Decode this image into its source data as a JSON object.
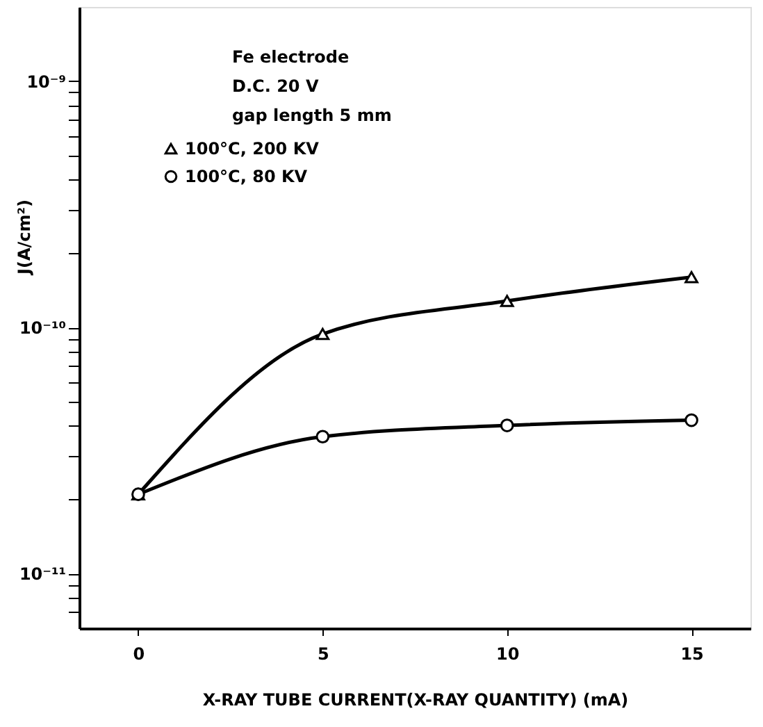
{
  "chart_data": {
    "type": "line",
    "xlabel": "X-RAY TUBE CURRENT(X-RAY QUANTITY)  (mA)",
    "ylabel": "J(A/cm²)",
    "annotations": [
      "Fe electrode",
      "D.C. 20 V",
      "gap length 5 mm"
    ],
    "x": [
      0,
      5,
      10,
      15
    ],
    "series": [
      {
        "name": "100°C, 200 KV",
        "color": "#000000",
        "marker": "triangle",
        "values": [
          2.1e-11,
          9.4e-11,
          1.28e-10,
          1.6e-10
        ]
      },
      {
        "name": "100°C, 80 KV",
        "color": "#000000",
        "marker": "circle",
        "values": [
          2.1e-11,
          3.6e-11,
          4e-11,
          4.2e-11
        ]
      }
    ],
    "log": "y",
    "xlim": [
      -1.6,
      16.6
    ],
    "ylim": [
      6e-12,
      2e-09
    ],
    "xticks": [
      0,
      5,
      10,
      15
    ],
    "yticks": [
      {
        "value": 7e-12,
        "label": null
      },
      {
        "value": 8e-12,
        "label": null
      },
      {
        "value": 9e-12,
        "label": null
      },
      {
        "value": 1e-11,
        "label": "10⁻¹¹"
      },
      {
        "value": 2e-11,
        "label": null
      },
      {
        "value": 3e-11,
        "label": null
      },
      {
        "value": 4e-11,
        "label": null
      },
      {
        "value": 5e-11,
        "label": null
      },
      {
        "value": 6e-11,
        "label": null
      },
      {
        "value": 7e-11,
        "label": null
      },
      {
        "value": 8e-11,
        "label": null
      },
      {
        "value": 9e-11,
        "label": null
      },
      {
        "value": 1e-10,
        "label": "10⁻¹⁰"
      },
      {
        "value": 2e-10,
        "label": null
      },
      {
        "value": 3e-10,
        "label": null
      },
      {
        "value": 4e-10,
        "label": null
      },
      {
        "value": 5e-10,
        "label": null
      },
      {
        "value": 6e-10,
        "label": null
      },
      {
        "value": 7e-10,
        "label": null
      },
      {
        "value": 8e-10,
        "label": null
      },
      {
        "value": 9e-10,
        "label": null
      },
      {
        "value": 1e-09,
        "label": "10⁻⁹"
      }
    ],
    "grid": false,
    "legend": "top left",
    "line_style": "solid"
  }
}
